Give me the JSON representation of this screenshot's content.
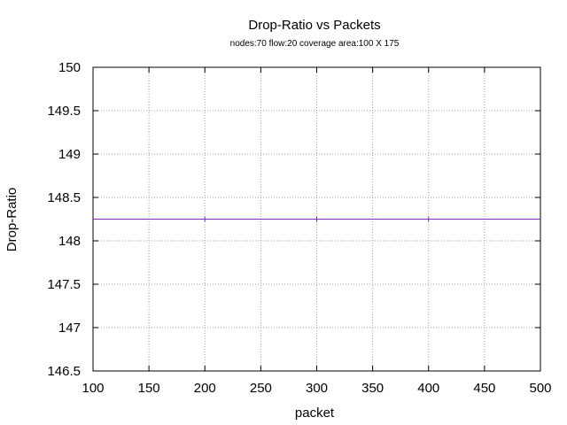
{
  "chart_data": {
    "type": "line",
    "title": "Drop-Ratio vs Packets",
    "subtitle": "nodes:70  flow:20  coverage area:100 X 175",
    "xlabel": "packet",
    "ylabel": "Drop-Ratio",
    "xlim": [
      100,
      500
    ],
    "ylim": [
      146.5,
      150
    ],
    "x_ticks": [
      "100",
      "150",
      "200",
      "250",
      "300",
      "350",
      "400",
      "450",
      "500"
    ],
    "y_ticks": [
      "146.5",
      "147",
      "147.5",
      "148",
      "148.5",
      "149",
      "149.5",
      "150"
    ],
    "grid": true,
    "series": [
      {
        "color": "#7b2fbf",
        "x": [
          100,
          200,
          300,
          400,
          500
        ],
        "y": [
          148.25,
          148.25,
          148.25,
          148.25,
          148.25
        ],
        "marked_x": [
          200,
          300,
          400
        ]
      }
    ]
  }
}
